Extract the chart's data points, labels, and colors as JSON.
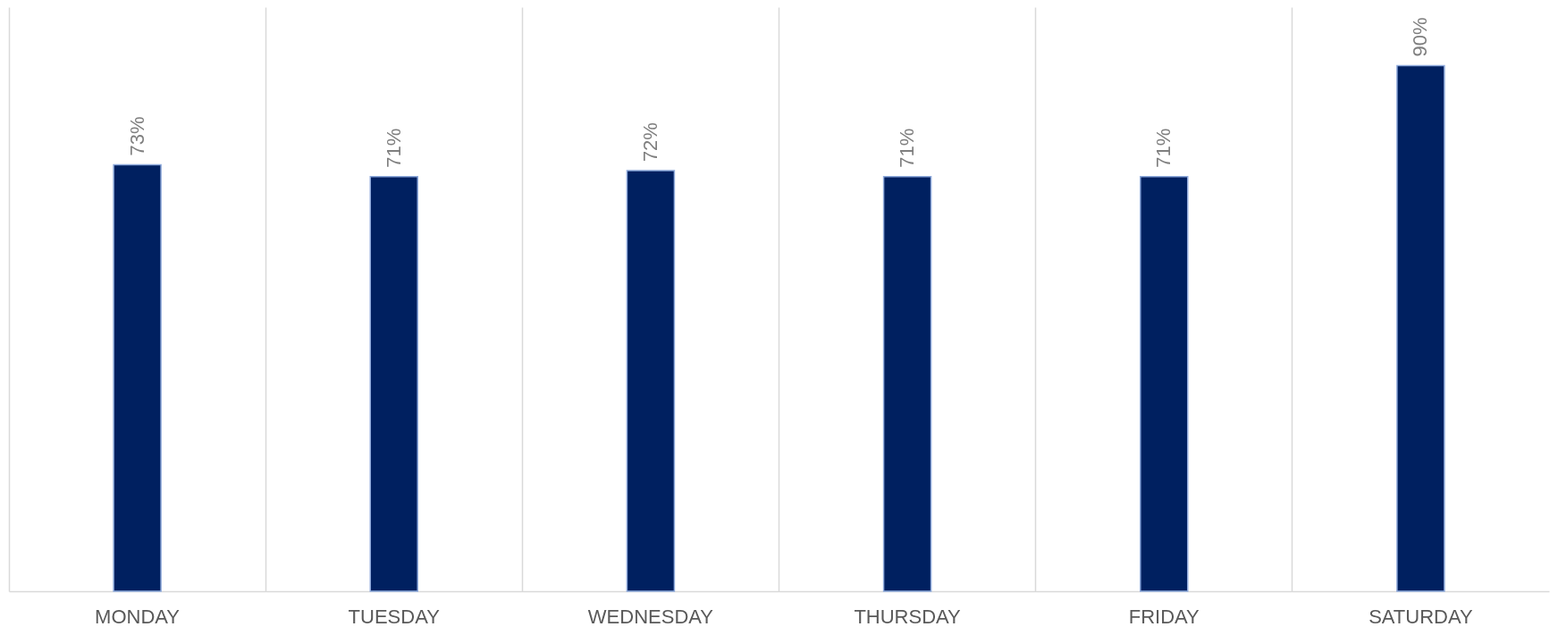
{
  "chart_data": {
    "type": "bar",
    "categories": [
      "MONDAY",
      "TUESDAY",
      "WEDNESDAY",
      "THURSDAY",
      "FRIDAY",
      "SATURDAY"
    ],
    "values": [
      73,
      71,
      72,
      71,
      71,
      90
    ],
    "value_labels": [
      "73%",
      "71%",
      "72%",
      "71%",
      "71%",
      "90%"
    ],
    "color": "#002060",
    "ylim": [
      0,
      100
    ],
    "grid": "x"
  }
}
